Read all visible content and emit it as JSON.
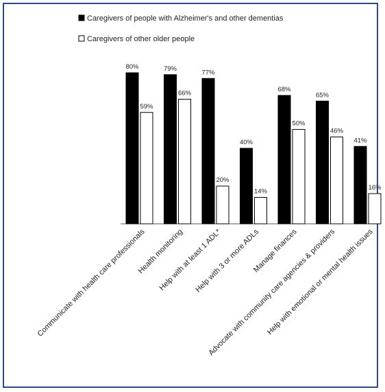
{
  "chart_data": {
    "type": "bar",
    "categories": [
      "Communicate with health care professionals",
      "Health monitoring",
      "Help with at least 1 ADL*",
      "Help with 3 or more ADLs",
      "Manage finances",
      "Advocate with community care agencies & providers",
      "Help with emotional or mental health issues"
    ],
    "series": [
      {
        "name": "Caregivers of people with Alzheimer's and other dementias",
        "values": [
          80,
          79,
          77,
          40,
          68,
          65,
          41
        ],
        "labels": [
          "80%",
          "79%",
          "77%",
          "40%",
          "68%",
          "65%",
          "41%"
        ],
        "color": "#000000"
      },
      {
        "name": "Caregivers of other older people",
        "values": [
          59,
          66,
          20,
          14,
          50,
          46,
          16
        ],
        "labels": [
          "59%",
          "66%",
          "20%",
          "14%",
          "50%",
          "46%",
          "16%"
        ],
        "color": "#ffffff"
      }
    ],
    "title": "",
    "xlabel": "",
    "ylabel": "",
    "ylim": [
      0,
      100
    ],
    "grid": false,
    "legend_position": "top"
  }
}
